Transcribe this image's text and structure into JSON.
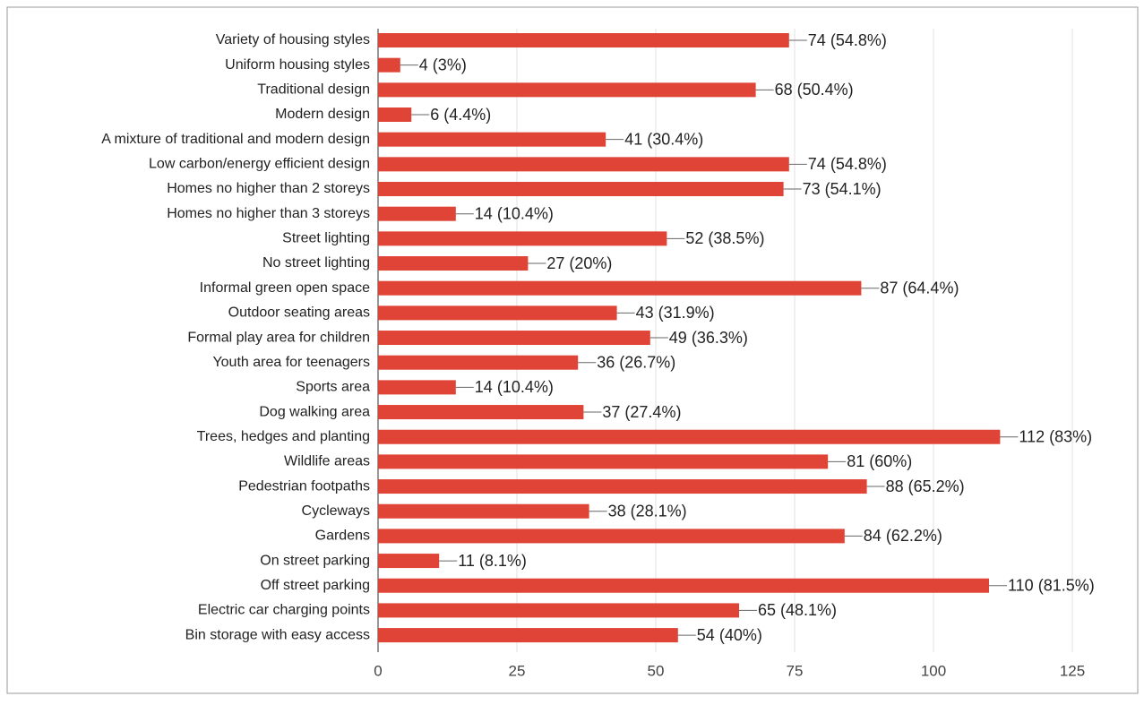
{
  "chart_data": {
    "type": "bar",
    "orientation": "horizontal",
    "categories": [
      "Variety of housing styles",
      "Uniform housing styles",
      "Traditional design",
      "Modern design",
      "A mixture of traditional and modern design",
      "Low carbon/energy efficient design",
      "Homes no higher than 2 storeys",
      "Homes no higher than 3 storeys",
      "Street lighting",
      "No street lighting",
      "Informal green open space",
      "Outdoor seating areas",
      "Formal play area for children",
      "Youth area for teenagers",
      "Sports area",
      "Dog walking area",
      "Trees, hedges and planting",
      "Wildlife areas",
      "Pedestrian footpaths",
      "Cycleways",
      "Gardens",
      "On street parking",
      "Off street parking",
      "Electric car charging points",
      "Bin storage with easy access"
    ],
    "values": [
      74,
      4,
      68,
      6,
      41,
      74,
      73,
      14,
      52,
      27,
      87,
      43,
      49,
      36,
      14,
      37,
      112,
      81,
      88,
      38,
      84,
      11,
      110,
      65,
      54
    ],
    "value_labels": [
      "74 (54.8%)",
      "4 (3%)",
      "68 (50.4%)",
      "6 (4.4%)",
      "41 (30.4%)",
      "74 (54.8%)",
      "73 (54.1%)",
      "14 (10.4%)",
      "52 (38.5%)",
      "27 (20%)",
      "87 (64.4%)",
      "43 (31.9%)",
      "49 (36.3%)",
      "36 (26.7%)",
      "14 (10.4%)",
      "37 (27.4%)",
      "112 (83%)",
      "81 (60%)",
      "88 (65.2%)",
      "38 (28.1%)",
      "84 (62.2%)",
      "11 (8.1%)",
      "110 (81.5%)",
      "65 (48.1%)",
      "54 (40%)"
    ],
    "color": "#e04436",
    "xlim": [
      0,
      125
    ],
    "xticks": [
      0,
      25,
      50,
      75,
      100,
      125
    ],
    "grid": true
  }
}
